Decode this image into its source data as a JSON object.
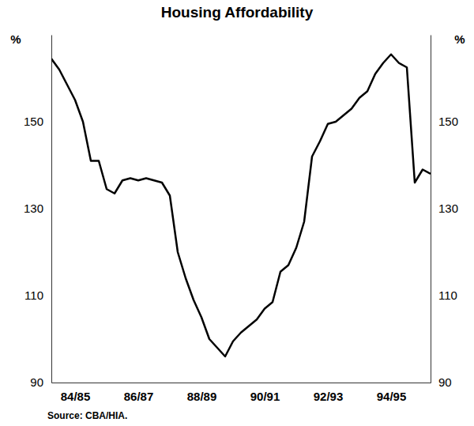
{
  "chart_data": {
    "type": "line",
    "title": "Housing Affordability",
    "ylabel": "%",
    "y2label": "%",
    "source": "Source: CBA/HIA.",
    "categories": [
      null,
      null,
      null,
      "84/85",
      null,
      null,
      null,
      null,
      null,
      null,
      null,
      "86/87",
      null,
      null,
      null,
      null,
      null,
      null,
      null,
      "88/89",
      null,
      null,
      null,
      null,
      null,
      null,
      null,
      "90/91",
      null,
      null,
      null,
      null,
      null,
      null,
      null,
      "92/93",
      null,
      null,
      null,
      null,
      null,
      null,
      null,
      "94/95",
      null,
      null,
      null,
      null,
      null
    ],
    "series": [
      {
        "name": "Housing Affordability",
        "color": "#000000",
        "values": [
          164.5,
          162,
          158.5,
          155,
          150,
          141,
          141,
          134.5,
          133.5,
          136.5,
          137,
          136.5,
          137,
          136.5,
          136,
          133,
          120,
          114,
          109,
          105,
          100,
          98,
          96,
          99.5,
          101.5,
          103,
          104.5,
          107,
          108.5,
          115.5,
          117,
          121,
          127,
          142,
          145.5,
          149.5,
          150,
          151.5,
          153,
          155.5,
          157,
          161,
          163.5,
          165.5,
          163.5,
          162.5,
          136,
          139,
          138
        ]
      }
    ],
    "ylim": [
      90,
      170
    ],
    "yticks": [
      90,
      110,
      130,
      150
    ],
    "y2lim": [
      90,
      170
    ],
    "y2ticks": [
      90,
      110,
      130,
      150
    ],
    "grid": false
  }
}
